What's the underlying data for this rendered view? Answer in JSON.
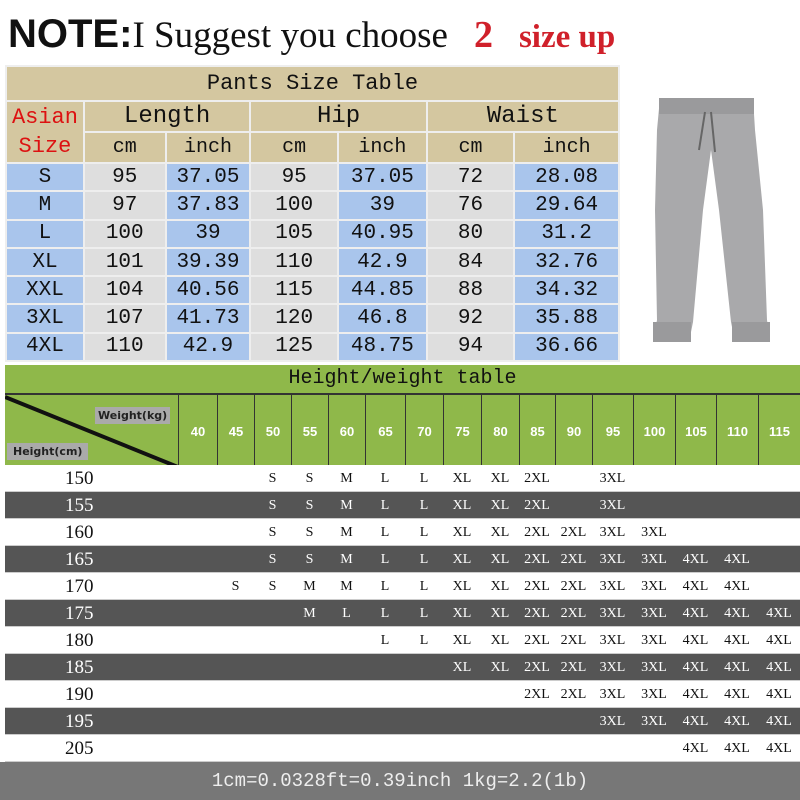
{
  "note": {
    "prefix": "NOTE:",
    "text": "I Suggest you choose",
    "number": "2",
    "suffix": "size up"
  },
  "pants_table": {
    "title": "Pants Size Table",
    "size_label_1": "Asian",
    "size_label_2": "Size",
    "groups": [
      "Length",
      "Hip",
      "Waist"
    ],
    "units": [
      "cm",
      "inch",
      "cm",
      "inch",
      "cm",
      "inch"
    ],
    "rows": [
      [
        "S",
        "95",
        "37.05",
        "95",
        "37.05",
        "72",
        "28.08"
      ],
      [
        "M",
        "97",
        "37.83",
        "100",
        "39",
        "76",
        "29.64"
      ],
      [
        "L",
        "100",
        "39",
        "105",
        "40.95",
        "80",
        "31.2"
      ],
      [
        "XL",
        "101",
        "39.39",
        "110",
        "42.9",
        "84",
        "32.76"
      ],
      [
        "XXL",
        "104",
        "40.56",
        "115",
        "44.85",
        "88",
        "34.32"
      ],
      [
        "3XL",
        "107",
        "41.73",
        "120",
        "46.8",
        "92",
        "35.88"
      ],
      [
        "4XL",
        "110",
        "42.9",
        "125",
        "48.75",
        "94",
        "36.66"
      ]
    ]
  },
  "product_image": "grey-jogger-pants",
  "hw_table": {
    "title": "Height/weight table",
    "weight_label": "Weight(kg)",
    "height_label": "Height(cm)",
    "weights": [
      "40",
      "45",
      "50",
      "55",
      "60",
      "65",
      "70",
      "75",
      "80",
      "85",
      "90",
      "95",
      "100",
      "105",
      "110",
      "115"
    ],
    "rows": [
      {
        "h": "150",
        "s": [
          "",
          "",
          "S",
          "S",
          "M",
          "L",
          "L",
          "XL",
          "XL",
          "2XL",
          "",
          "3XL",
          "",
          "",
          "",
          ""
        ]
      },
      {
        "h": "155",
        "s": [
          "",
          "",
          "S",
          "S",
          "M",
          "L",
          "L",
          "XL",
          "XL",
          "2XL",
          "",
          "3XL",
          "",
          "",
          "",
          ""
        ]
      },
      {
        "h": "160",
        "s": [
          "",
          "",
          "S",
          "S",
          "M",
          "L",
          "L",
          "XL",
          "XL",
          "2XL",
          "2XL",
          "3XL",
          "3XL",
          "",
          "",
          ""
        ]
      },
      {
        "h": "165",
        "s": [
          "",
          "",
          "S",
          "S",
          "M",
          "L",
          "L",
          "XL",
          "XL",
          "2XL",
          "2XL",
          "3XL",
          "3XL",
          "4XL",
          "4XL",
          ""
        ]
      },
      {
        "h": "170",
        "s": [
          "",
          "S",
          "S",
          "M",
          "M",
          "L",
          "L",
          "XL",
          "XL",
          "2XL",
          "2XL",
          "3XL",
          "3XL",
          "4XL",
          "4XL",
          ""
        ]
      },
      {
        "h": "175",
        "s": [
          "",
          "",
          "",
          "M",
          "L",
          "L",
          "L",
          "XL",
          "XL",
          "2XL",
          "2XL",
          "3XL",
          "3XL",
          "4XL",
          "4XL",
          "4XL"
        ]
      },
      {
        "h": "180",
        "s": [
          "",
          "",
          "",
          "",
          "",
          "L",
          "L",
          "XL",
          "XL",
          "2XL",
          "2XL",
          "3XL",
          "3XL",
          "4XL",
          "4XL",
          "4XL"
        ]
      },
      {
        "h": "185",
        "s": [
          "",
          "",
          "",
          "",
          "",
          "",
          "",
          "XL",
          "XL",
          "2XL",
          "2XL",
          "3XL",
          "3XL",
          "4XL",
          "4XL",
          "4XL"
        ]
      },
      {
        "h": "190",
        "s": [
          "",
          "",
          "",
          "",
          "",
          "",
          "",
          "",
          "",
          "2XL",
          "2XL",
          "3XL",
          "3XL",
          "4XL",
          "4XL",
          "4XL"
        ]
      },
      {
        "h": "195",
        "s": [
          "",
          "",
          "",
          "",
          "",
          "",
          "",
          "",
          "",
          "",
          "",
          "3XL",
          "3XL",
          "4XL",
          "4XL",
          "4XL"
        ]
      },
      {
        "h": "205",
        "s": [
          "",
          "",
          "",
          "",
          "",
          "",
          "",
          "",
          "",
          "",
          "",
          "",
          "",
          "4XL",
          "4XL",
          "4XL"
        ]
      }
    ]
  },
  "footer": "1cm=0.0328ft=0.39inch  1kg=2.2(1b)",
  "colors": {
    "tan": "#d4c7a0",
    "blue": "#a9c5ec",
    "grey": "#dedede",
    "green": "#8fb84a",
    "dark_row": "#555555",
    "red": "#d0202a"
  }
}
